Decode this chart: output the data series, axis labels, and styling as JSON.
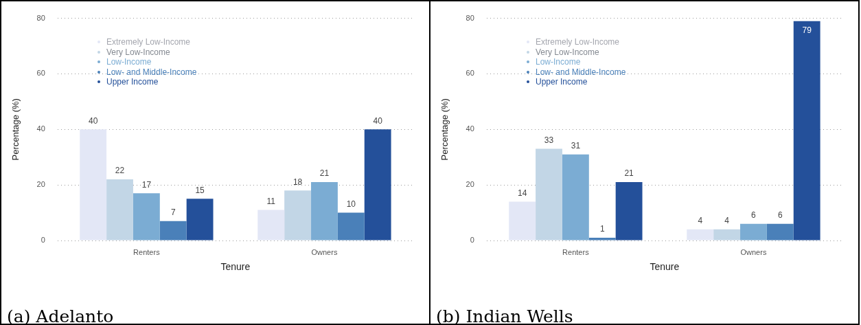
{
  "chart_data": [
    {
      "type": "bar",
      "title": "(a) Adelanto",
      "xlabel": "Tenure",
      "ylabel": "Percentage (%)",
      "categories": [
        "Renters",
        "Owners"
      ],
      "series": [
        {
          "name": "Extremely Low-Income",
          "color": "#e3e7f6",
          "values": [
            40,
            11
          ]
        },
        {
          "name": "Very Low-Income",
          "color": "#c2d6e6",
          "values": [
            22,
            18
          ]
        },
        {
          "name": "Low-Income",
          "color": "#7bacd3",
          "values": [
            17,
            21
          ]
        },
        {
          "name": "Low- and Middle-Income",
          "color": "#4a80b9",
          "values": [
            7,
            10
          ]
        },
        {
          "name": "Upper Income",
          "color": "#24509a",
          "values": [
            15,
            40
          ]
        }
      ],
      "ylim": [
        0,
        80
      ],
      "yticks": [
        0,
        20,
        40,
        60,
        80
      ],
      "grid": "y",
      "legend": "top left",
      "data_labels": true
    },
    {
      "type": "bar",
      "title": "(b) Indian Wells",
      "xlabel": "Tenure",
      "ylabel": "Percentage (%)",
      "categories": [
        "Renters",
        "Owners"
      ],
      "series": [
        {
          "name": "Extremely Low-Income",
          "color": "#e3e7f6",
          "values": [
            14,
            4
          ]
        },
        {
          "name": "Very Low-Income",
          "color": "#c2d6e6",
          "values": [
            33,
            4
          ]
        },
        {
          "name": "Low-Income",
          "color": "#7bacd3",
          "values": [
            31,
            6
          ]
        },
        {
          "name": "Low- and Middle-Income",
          "color": "#4a80b9",
          "values": [
            1,
            6
          ]
        },
        {
          "name": "Upper Income",
          "color": "#24509a",
          "values": [
            21,
            79
          ]
        }
      ],
      "ylim": [
        0,
        80
      ],
      "yticks": [
        0,
        20,
        40,
        60,
        80
      ],
      "grid": "y",
      "legend": "top left",
      "data_labels": true
    }
  ]
}
